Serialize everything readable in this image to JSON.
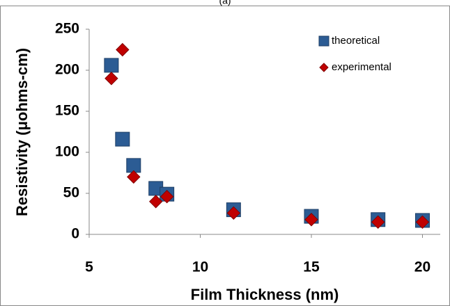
{
  "chart_data": {
    "type": "scatter",
    "title": "(a)",
    "xlabel": "Film Thickness  (nm)",
    "ylabel": "Resistivity (μohms-cm)",
    "xlim": [
      5,
      20.8
    ],
    "ylim": [
      0,
      250
    ],
    "xticks": [
      5,
      10,
      15,
      20
    ],
    "yticks": [
      0,
      50,
      100,
      150,
      200,
      250
    ],
    "grid": false,
    "legend": "upper right",
    "series": [
      {
        "name": "theoretical",
        "color": "#2c5c94",
        "marker": "square",
        "x": [
          6,
          6.5,
          7,
          8,
          8.5,
          11.5,
          15,
          18,
          20
        ],
        "values": [
          206,
          116,
          84,
          56,
          49,
          30,
          22,
          18,
          17
        ]
      },
      {
        "name": "experimental",
        "color": "#c00000",
        "marker": "diamond",
        "x": [
          6,
          6.5,
          7,
          8,
          8.5,
          11.5,
          15,
          18,
          20
        ],
        "values": [
          190,
          225,
          70,
          40,
          46,
          26,
          18,
          15,
          15
        ]
      }
    ]
  }
}
